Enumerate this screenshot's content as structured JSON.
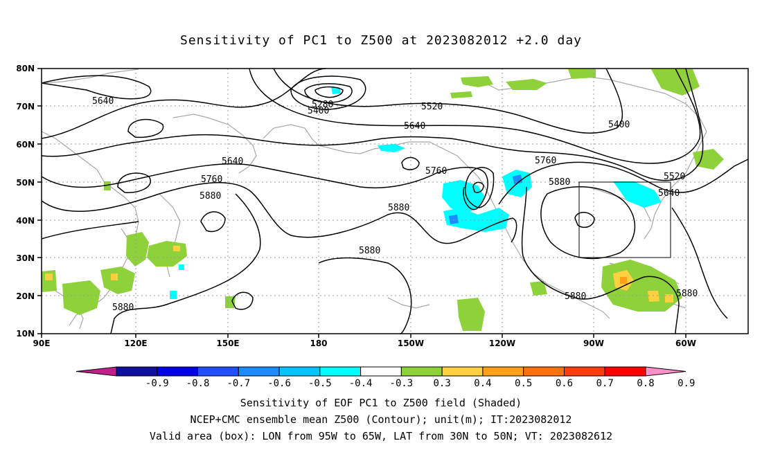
{
  "title": "Sensitivity of PC1 to Z500 at 2023082012 +2.0 day",
  "map": {
    "lat_labels": [
      "80N",
      "70N",
      "60N",
      "50N",
      "40N",
      "30N",
      "20N",
      "10N"
    ],
    "lon_labels": [
      "90E",
      "120E",
      "150E",
      "180",
      "150W",
      "120W",
      "90W",
      "60W"
    ],
    "coast_color": "#a8a8a8",
    "valid_box": {
      "lon_from": "95W",
      "lon_to": "65W",
      "lat_from": "30N",
      "lat_to": "50N"
    }
  },
  "contour_labels": {
    "a": "5640",
    "b": "5280",
    "c": "5400",
    "d": "5520",
    "e": "5640",
    "f": "5400",
    "g": "5640",
    "h": "5760",
    "i": "5880",
    "j": "5760",
    "k": "5760",
    "l": "5880",
    "m": "5880",
    "n": "5520",
    "o": "5640",
    "p": "5880",
    "q": "5880",
    "r": "5880",
    "s": "5880"
  },
  "colorbar": {
    "levels": [
      "-0.9",
      "-0.8",
      "-0.7",
      "-0.6",
      "-0.5",
      "-0.4",
      "-0.3",
      "0.3",
      "0.4",
      "0.5",
      "0.6",
      "0.7",
      "0.8",
      "0.9"
    ],
    "colors": [
      "#c0208b",
      "#0e0ea0",
      "#0000e6",
      "#1f4fff",
      "#1a8cff",
      "#00c3ff",
      "#00ffff",
      "#ffffff",
      "#8fd13a",
      "#ffd040",
      "#ffa01a",
      "#ff7010",
      "#ff3c10",
      "#ff0000",
      "#ff90c8"
    ]
  },
  "footer": {
    "line1": "Sensitivity of EOF PC1 to Z500 field (Shaded)",
    "line2": "NCEP+CMC ensemble mean Z500 (Contour); unit(m); IT:2023082012",
    "line3": "Valid area (box): LON from 95W to 65W, LAT from 30N to 50N; VT: 2023082612"
  }
}
